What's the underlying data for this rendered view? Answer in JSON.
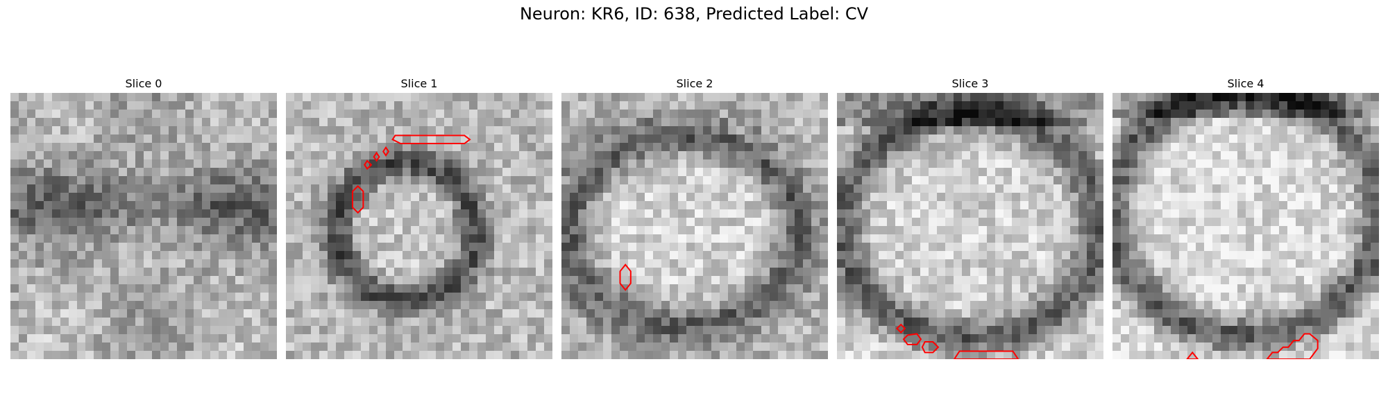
{
  "figure": {
    "title": "Neuron: KR6, ID: 638, Predicted Label: CV"
  },
  "contour_color": "#ff0000",
  "panels": [
    {
      "title": "Slice 0",
      "contours": []
    },
    {
      "title": "Slice 1",
      "contours": [
        {
          "points": [
            [
              0.41,
              0.16
            ],
            [
              0.67,
              0.16
            ],
            [
              0.69,
              0.175
            ],
            [
              0.67,
              0.19
            ],
            [
              0.43,
              0.19
            ],
            [
              0.4,
              0.175
            ]
          ]
        },
        {
          "points": [
            [
              0.365,
              0.22
            ],
            [
              0.375,
              0.205
            ],
            [
              0.385,
              0.22
            ],
            [
              0.375,
              0.235
            ]
          ]
        },
        {
          "points": [
            [
              0.33,
              0.24
            ],
            [
              0.34,
              0.225
            ],
            [
              0.35,
              0.24
            ],
            [
              0.34,
              0.255
            ]
          ]
        },
        {
          "points": [
            [
              0.295,
              0.27
            ],
            [
              0.305,
              0.255
            ],
            [
              0.32,
              0.27
            ],
            [
              0.305,
              0.285
            ]
          ]
        },
        {
          "points": [
            [
              0.27,
              0.35
            ],
            [
              0.29,
              0.37
            ],
            [
              0.29,
              0.43
            ],
            [
              0.27,
              0.45
            ],
            [
              0.25,
              0.43
            ],
            [
              0.25,
              0.37
            ]
          ]
        }
      ]
    },
    {
      "title": "Slice 2",
      "contours": [
        {
          "points": [
            [
              0.24,
              0.645
            ],
            [
              0.26,
              0.67
            ],
            [
              0.26,
              0.715
            ],
            [
              0.24,
              0.74
            ],
            [
              0.22,
              0.715
            ],
            [
              0.22,
              0.67
            ]
          ]
        }
      ]
    },
    {
      "title": "Slice 3",
      "contours": [
        {
          "points": [
            [
              0.24,
              0.87
            ],
            [
              0.255,
              0.885
            ],
            [
              0.24,
              0.9
            ],
            [
              0.225,
              0.885
            ]
          ]
        },
        {
          "points": [
            [
              0.265,
              0.91
            ],
            [
              0.3,
              0.905
            ],
            [
              0.315,
              0.925
            ],
            [
              0.3,
              0.945
            ],
            [
              0.265,
              0.945
            ],
            [
              0.25,
              0.925
            ]
          ]
        },
        {
          "points": [
            [
              0.33,
              0.935
            ],
            [
              0.36,
              0.935
            ],
            [
              0.38,
              0.955
            ],
            [
              0.36,
              0.975
            ],
            [
              0.33,
              0.975
            ],
            [
              0.32,
              0.955
            ]
          ]
        },
        {
          "points": [
            [
              0.44,
              1.0
            ],
            [
              0.46,
              0.97
            ],
            [
              0.66,
              0.97
            ],
            [
              0.68,
              1.0
            ]
          ]
        }
      ]
    },
    {
      "title": "Slice 4",
      "contours": [
        {
          "points": [
            [
              0.28,
              1.0
            ],
            [
              0.3,
              0.975
            ],
            [
              0.32,
              1.0
            ]
          ]
        },
        {
          "points": [
            [
              0.58,
              1.0
            ],
            [
              0.6,
              0.975
            ],
            [
              0.62,
              0.975
            ],
            [
              0.64,
              0.955
            ],
            [
              0.66,
              0.955
            ],
            [
              0.68,
              0.93
            ],
            [
              0.7,
              0.93
            ],
            [
              0.72,
              0.905
            ],
            [
              0.74,
              0.905
            ],
            [
              0.77,
              0.93
            ],
            [
              0.77,
              0.96
            ],
            [
              0.74,
              1.0
            ]
          ]
        }
      ]
    }
  ]
}
